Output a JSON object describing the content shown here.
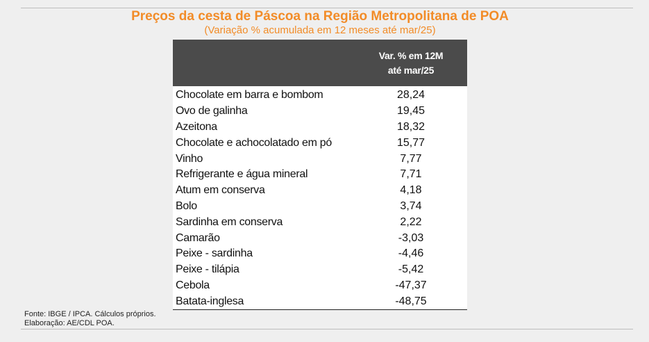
{
  "chart_data": {
    "type": "table",
    "title": "Preços da cesta de Páscoa na Região Metropolitana de POA",
    "subtitle": "(Variação % acumulada em 12 meses até mar/25)",
    "column_header": [
      "Var. % em 12M",
      "até mar/25"
    ],
    "rows": [
      {
        "item": "Chocolate em barra e bombom",
        "value": "28,24"
      },
      {
        "item": "Ovo de galinha",
        "value": "19,45"
      },
      {
        "item": "Azeitona",
        "value": "18,32"
      },
      {
        "item": "Chocolate e achocolatado em pó",
        "value": "15,77"
      },
      {
        "item": "Vinho",
        "value": "7,77"
      },
      {
        "item": "Refrigerante e água mineral",
        "value": "7,71"
      },
      {
        "item": "Atum em conserva",
        "value": "4,18"
      },
      {
        "item": "Bolo",
        "value": "3,74"
      },
      {
        "item": "Sardinha em conserva",
        "value": "2,22"
      },
      {
        "item": "Camarão",
        "value": "-3,03"
      },
      {
        "item": "Peixe - sardinha",
        "value": "-4,46"
      },
      {
        "item": "Peixe - tilápia",
        "value": "-5,42"
      },
      {
        "item": "Cebola",
        "value": "-47,37"
      },
      {
        "item": "Batata-inglesa",
        "value": "-48,75"
      }
    ]
  },
  "notes": {
    "source": "Fonte: IBGE / IPCA. Cálculos próprios.",
    "credit": "Elaboração: AE/CDL POA."
  },
  "colors": {
    "title": "#f28c28",
    "header_bg": "#4b4b4b",
    "background": "#efefef"
  }
}
